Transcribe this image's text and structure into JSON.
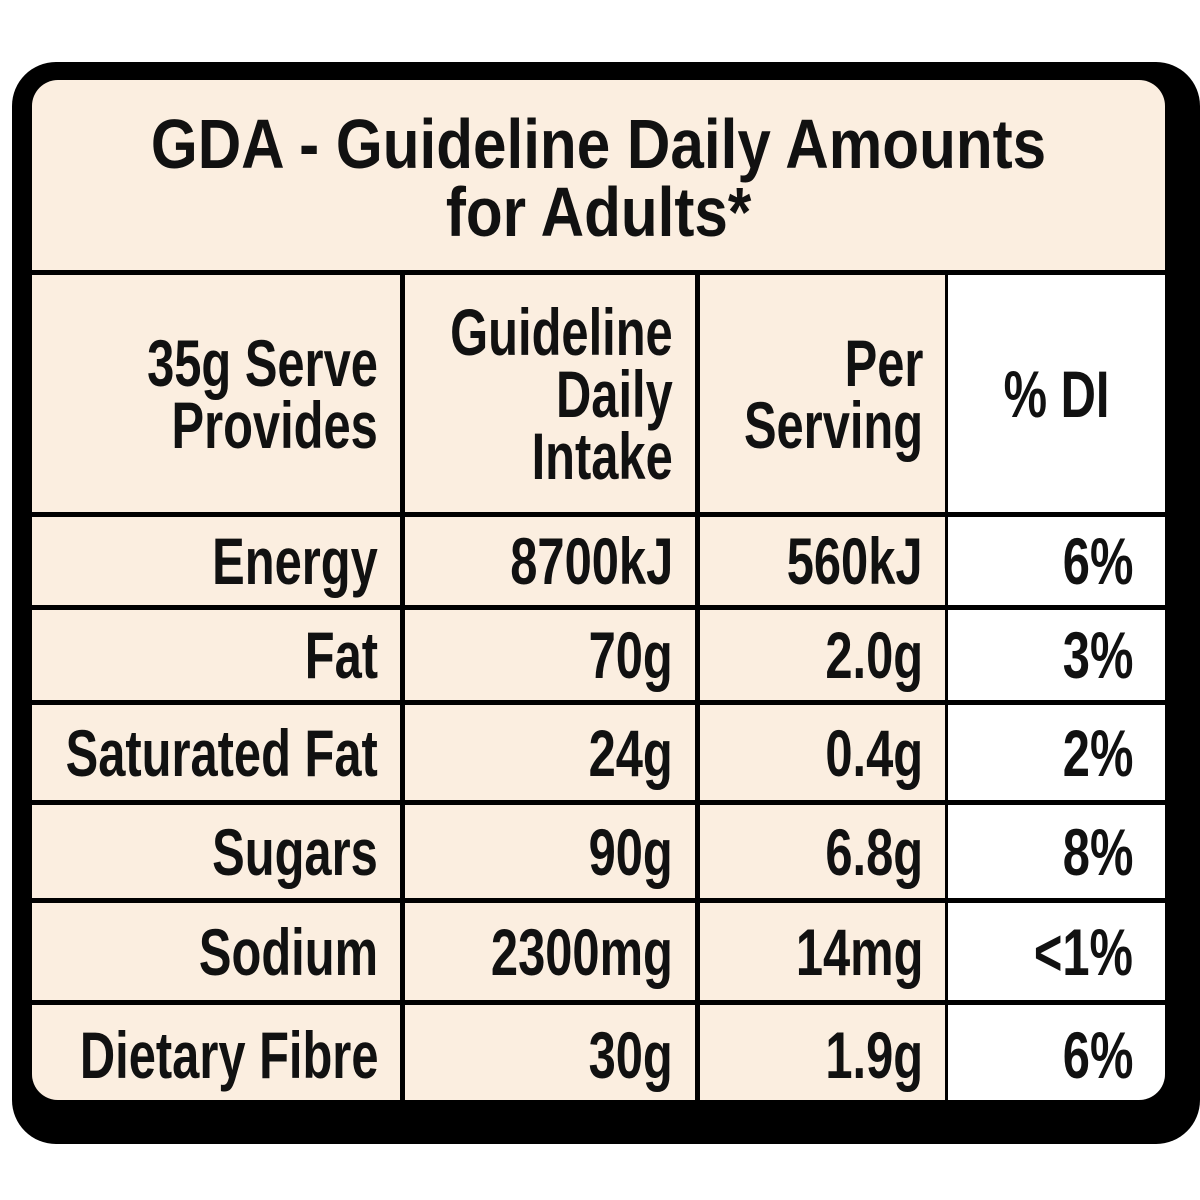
{
  "header": {
    "title_lines": [
      "GDA - Guideline Daily Amounts",
      "for Adults*"
    ]
  },
  "table": {
    "columns": [
      [
        "35g Serve",
        "Provides"
      ],
      [
        "Guideline",
        "Daily",
        "Intake"
      ],
      [
        "Per",
        "Serving"
      ],
      [
        "% DI"
      ]
    ],
    "rows": [
      [
        "Energy",
        "8700kJ",
        "560kJ",
        "6%"
      ],
      [
        "Fat",
        "70g",
        "2.0g",
        "3%"
      ],
      [
        "Saturated Fat",
        "24g",
        "0.4g",
        "2%"
      ],
      [
        "Sugars",
        "90g",
        "6.8g",
        "8%"
      ],
      [
        "Sodium",
        "2300mg",
        "14mg",
        "<1%"
      ],
      [
        "Dietary Fibre",
        "30g",
        "1.9g",
        "6%"
      ]
    ]
  }
}
